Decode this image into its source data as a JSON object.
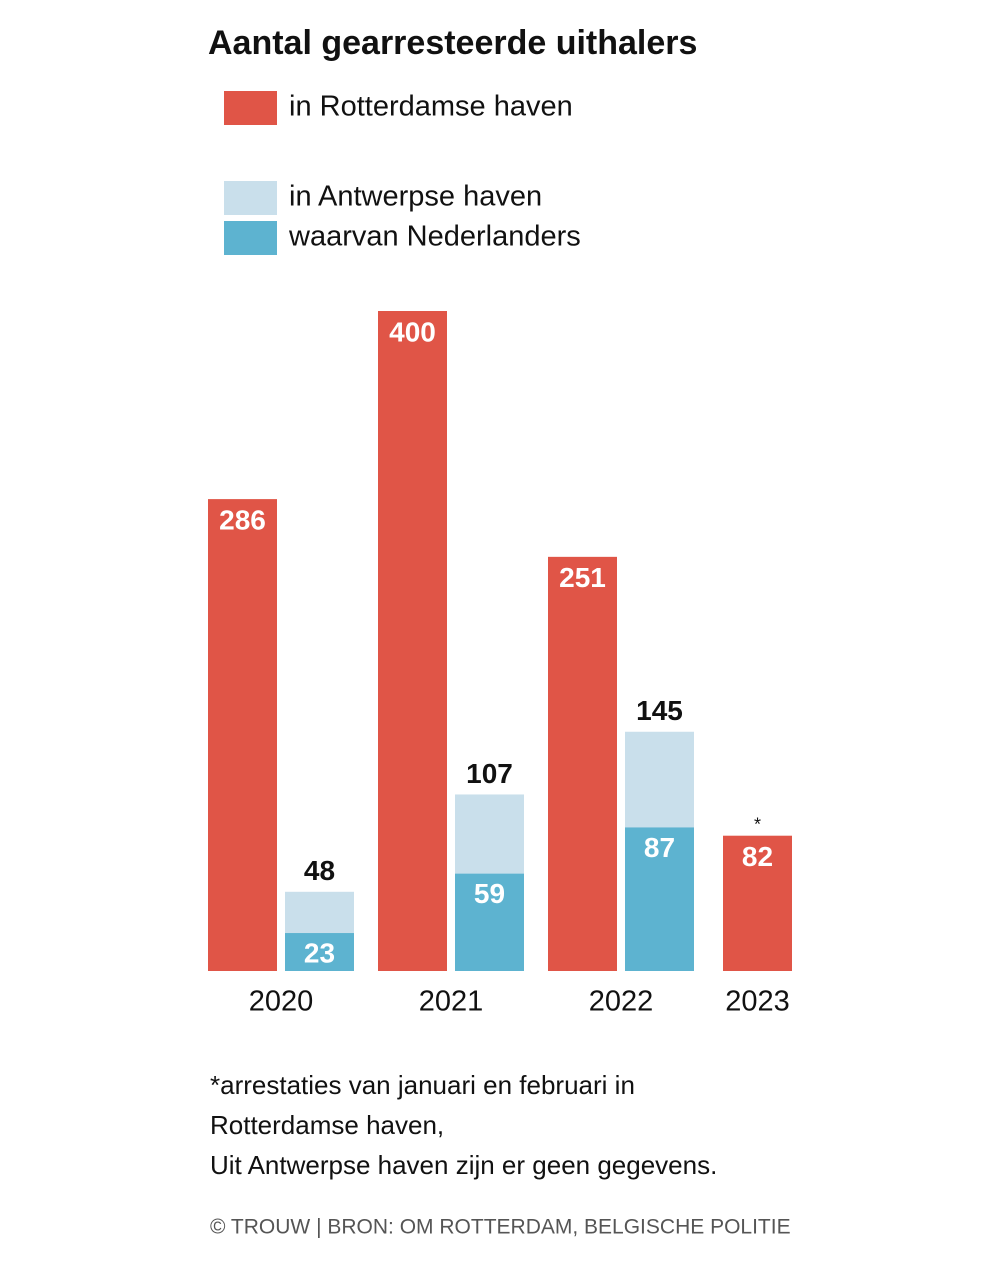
{
  "chart_data": {
    "type": "bar",
    "title": "Aantal gearresteerde uithalers",
    "categories": [
      "2020",
      "2021",
      "2022",
      "2023"
    ],
    "series": [
      {
        "name": "in Rotterdamse haven",
        "color": "#e05547",
        "values": [
          286,
          400,
          251,
          82
        ]
      },
      {
        "name": "in Antwerpse haven",
        "color": "#c9dfeb",
        "values": [
          48,
          107,
          145,
          null
        ]
      },
      {
        "name": "waarvan Nederlanders",
        "color": "#5db3d0",
        "values": [
          23,
          59,
          87,
          null
        ]
      }
    ],
    "annotation": "*",
    "footnote": [
      "*arrestaties van januari en februari in",
      "Rotterdamse haven,",
      "Uit Antwerpse haven zijn er geen gegevens."
    ],
    "source": "© TROUW | BRON: OM ROTTERDAM, BELGISCHE POLITIE"
  }
}
